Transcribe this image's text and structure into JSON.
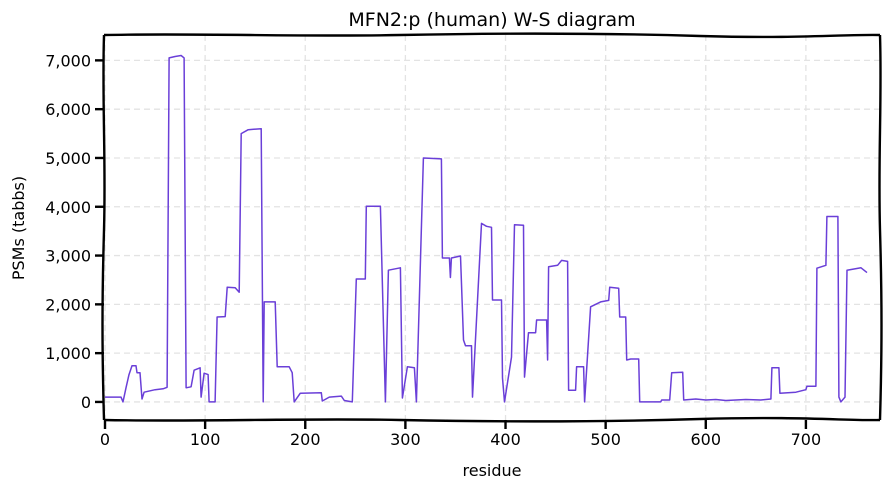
{
  "chart_data": {
    "type": "line",
    "title": "MFN2:p (human) W-S diagram",
    "xlabel": "residue",
    "ylabel": "PSMs (tabbs)",
    "xlim": [
      -1,
      774
    ],
    "ylim": [
      -370,
      7520
    ],
    "grid": true,
    "line_color": "#6a3fd8",
    "x_ticks": [
      0,
      100,
      200,
      300,
      400,
      500,
      600,
      700
    ],
    "x_tick_labels": [
      "0",
      "100",
      "200",
      "300",
      "400",
      "500",
      "600",
      "700"
    ],
    "y_ticks": [
      0,
      1000,
      2000,
      3000,
      4000,
      5000,
      6000,
      7000
    ],
    "y_tick_labels": [
      "0",
      "1,000",
      "2,000",
      "3,000",
      "4,000",
      "5,000",
      "6,000",
      "7,000"
    ],
    "series": [
      {
        "name": "MFN2",
        "points": [
          [
            0,
            100
          ],
          [
            16,
            100
          ],
          [
            18,
            0
          ],
          [
            21,
            290
          ],
          [
            24,
            560
          ],
          [
            27,
            740
          ],
          [
            31,
            740
          ],
          [
            32,
            600
          ],
          [
            35,
            600
          ],
          [
            37,
            60
          ],
          [
            39,
            200
          ],
          [
            50,
            250
          ],
          [
            58,
            270
          ],
          [
            62,
            300
          ],
          [
            64,
            7050
          ],
          [
            70,
            7080
          ],
          [
            76,
            7100
          ],
          [
            79,
            7050
          ],
          [
            81,
            290
          ],
          [
            86,
            310
          ],
          [
            89,
            650
          ],
          [
            95,
            700
          ],
          [
            96,
            100
          ],
          [
            99,
            590
          ],
          [
            103,
            560
          ],
          [
            104,
            0
          ],
          [
            110,
            0
          ],
          [
            112,
            1740
          ],
          [
            120,
            1750
          ],
          [
            122,
            2350
          ],
          [
            130,
            2340
          ],
          [
            134,
            2250
          ],
          [
            136,
            5500
          ],
          [
            143,
            5580
          ],
          [
            156,
            5600
          ],
          [
            158,
            0
          ],
          [
            159,
            2050
          ],
          [
            170,
            2050
          ],
          [
            172,
            720
          ],
          [
            184,
            720
          ],
          [
            187,
            600
          ],
          [
            189,
            0
          ],
          [
            195,
            180
          ],
          [
            216,
            190
          ],
          [
            217,
            20
          ],
          [
            224,
            100
          ],
          [
            236,
            120
          ],
          [
            239,
            30
          ],
          [
            247,
            0
          ],
          [
            251,
            2520
          ],
          [
            260,
            2520
          ],
          [
            261,
            4010
          ],
          [
            275,
            4010
          ],
          [
            280,
            0
          ],
          [
            283,
            2700
          ],
          [
            295,
            2750
          ],
          [
            297,
            80
          ],
          [
            302,
            720
          ],
          [
            309,
            700
          ],
          [
            311,
            0
          ],
          [
            318,
            5000
          ],
          [
            336,
            4980
          ],
          [
            337,
            2950
          ],
          [
            344,
            2950
          ],
          [
            345,
            2550
          ],
          [
            346,
            2950
          ],
          [
            355,
            2990
          ],
          [
            358,
            1270
          ],
          [
            360,
            1150
          ],
          [
            366,
            1150
          ],
          [
            367,
            100
          ],
          [
            376,
            3660
          ],
          [
            381,
            3600
          ],
          [
            386,
            3580
          ],
          [
            387,
            2090
          ],
          [
            396,
            2090
          ],
          [
            397,
            490
          ],
          [
            399,
            0
          ],
          [
            406,
            920
          ],
          [
            409,
            3630
          ],
          [
            418,
            3620
          ],
          [
            419,
            510
          ],
          [
            423,
            1420
          ],
          [
            430,
            1420
          ],
          [
            431,
            1680
          ],
          [
            441,
            1680
          ],
          [
            442,
            860
          ],
          [
            443,
            2770
          ],
          [
            452,
            2800
          ],
          [
            456,
            2900
          ],
          [
            462,
            2880
          ],
          [
            463,
            240
          ],
          [
            470,
            240
          ],
          [
            471,
            720
          ],
          [
            478,
            720
          ],
          [
            479,
            0
          ],
          [
            485,
            1950
          ],
          [
            495,
            2050
          ],
          [
            503,
            2080
          ],
          [
            504,
            2350
          ],
          [
            513,
            2330
          ],
          [
            514,
            1740
          ],
          [
            520,
            1740
          ],
          [
            521,
            860
          ],
          [
            525,
            880
          ],
          [
            533,
            880
          ],
          [
            534,
            0
          ],
          [
            555,
            0
          ],
          [
            556,
            40
          ],
          [
            564,
            40
          ],
          [
            566,
            600
          ],
          [
            577,
            610
          ],
          [
            578,
            40
          ],
          [
            590,
            60
          ],
          [
            600,
            40
          ],
          [
            610,
            50
          ],
          [
            620,
            30
          ],
          [
            630,
            40
          ],
          [
            640,
            50
          ],
          [
            655,
            40
          ],
          [
            665,
            60
          ],
          [
            666,
            700
          ],
          [
            673,
            700
          ],
          [
            674,
            180
          ],
          [
            690,
            200
          ],
          [
            700,
            250
          ],
          [
            701,
            320
          ],
          [
            710,
            320
          ],
          [
            711,
            2740
          ],
          [
            720,
            2800
          ],
          [
            721,
            3800
          ],
          [
            732,
            3800
          ],
          [
            733,
            100
          ],
          [
            735,
            0
          ],
          [
            739,
            100
          ],
          [
            741,
            2700
          ],
          [
            755,
            2750
          ],
          [
            761,
            2650
          ]
        ]
      }
    ]
  }
}
